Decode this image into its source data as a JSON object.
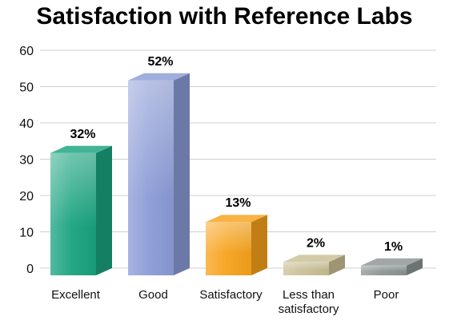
{
  "chart_data": {
    "type": "bar",
    "title": "Satisfaction with Reference Labs",
    "categories": [
      "Excellent",
      "Good",
      "Satisfactory",
      "Less than satisfactory",
      "Poor"
    ],
    "category_lines": [
      [
        "Excellent"
      ],
      [
        "Good"
      ],
      [
        "Satisfactory"
      ],
      [
        "Less than",
        "satisfactory"
      ],
      [
        "Poor"
      ]
    ],
    "values": [
      32,
      52,
      13,
      2,
      1
    ],
    "data_labels": [
      "32%",
      "52%",
      "13%",
      "2%",
      "1%"
    ],
    "yticks": [
      0,
      10,
      20,
      30,
      40,
      50,
      60
    ],
    "ylim": [
      0,
      60
    ],
    "grid": true,
    "xlabel": "",
    "ylabel": "",
    "colors": {
      "Excellent": "#1aa37f",
      "Good": "#8b9bd6",
      "Satisfactory": "#f7a21b",
      "Less than satisfactory": "#c9bf95",
      "Poor": "#8c9494"
    }
  }
}
